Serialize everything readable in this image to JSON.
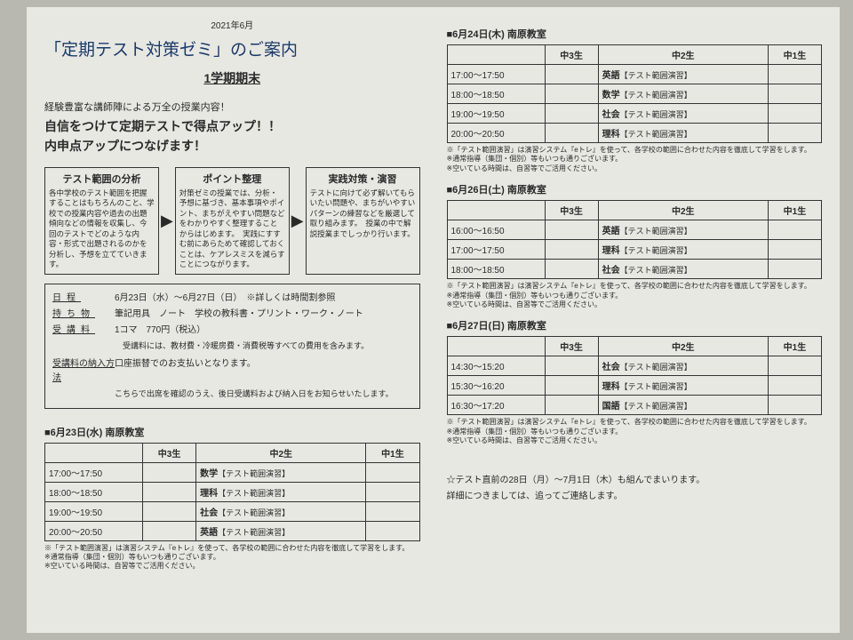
{
  "top_date": "2021年6月",
  "title": "「定期テスト対策ゼミ」のご案内",
  "subtitle": "1学期期末",
  "lead1": "経験豊富な講師陣による万全の授業内容！",
  "lead2": "自信をつけて定期テストで得点アップ！！",
  "lead3": "内申点アップにつなげます！",
  "flow": [
    {
      "title": "テスト範囲の分析",
      "text": "各中学校のテスト範囲を把握することはもちろんのこと、学校での授業内容や過去の出題傾向などの情報を収集し、今回のテストでどのような内容・形式で出題されるのかを分析し、予想を立てていきます。"
    },
    {
      "title": "ポイント整理",
      "text": "対策ゼミの授業では、分析・予想に基づき、基本事項やポイント、まちがえやすい問題などをわかりやすく整理することからはじめます。　実践にすすむ前にあらためて確認しておくことは、ケアレスミスを減らすことにつながります。"
    },
    {
      "title": "実践対策・演習",
      "text": "テストに向けて必ず解いてもらいたい問題や、まちがいやすいパターンの練習などを厳選して取り組みます。　授業の中で解説授業までしっかり行います。"
    }
  ],
  "info": {
    "schedule_label": "日程",
    "schedule": "6月23日（水）～6月27日（日）　※詳しくは時間割参照",
    "items_label": "持ち物",
    "items": "筆記用具　ノート　学校の教科書・プリント・ワーク・ノート",
    "fee_label": "受講料",
    "fee": "1コマ　770円（税込）",
    "fee_note": "　受講料には、教材費・冷暖房費・消費税等すべての費用を含みます。",
    "pay_label": "受講料の納入方法",
    "pay1": "口座振替でのお支払いとなります。",
    "pay2": "こちらで出席を確認のうえ、後日受講料および納入日をお知らせいたします。"
  },
  "sched_headers": [
    "中3生",
    "中2生",
    "中1生"
  ],
  "footnote1": "※「テスト範囲演習」は演習システム『eトレ』を使って、各学校の範囲に合わせた内容を徹底して学習をします。",
  "footnote2": "※通常指導（集団・個別）等もいつも通りございます。",
  "footnote3": "※空いている時間は、自習等でご活用ください。",
  "days": [
    {
      "title": "■6月23日(水) 南原教室",
      "rows": [
        {
          "time": "17:00～17:50",
          "c2": "数学【テスト範囲演習】"
        },
        {
          "time": "18:00～18:50",
          "c2": "理科【テスト範囲演習】"
        },
        {
          "time": "19:00～19:50",
          "c2": "社会【テスト範囲演習】"
        },
        {
          "time": "20:00～20:50",
          "c2": "英語【テスト範囲演習】"
        }
      ]
    },
    {
      "title": "■6月24日(木) 南原教室",
      "rows": [
        {
          "time": "17:00～17:50",
          "c2": "英語【テスト範囲演習】"
        },
        {
          "time": "18:00～18:50",
          "c2": "数学【テスト範囲演習】"
        },
        {
          "time": "19:00～19:50",
          "c2": "社会【テスト範囲演習】"
        },
        {
          "time": "20:00～20:50",
          "c2": "理科【テスト範囲演習】"
        }
      ]
    },
    {
      "title": "■6月26日(土) 南原教室",
      "rows": [
        {
          "time": "16:00～16:50",
          "c2": "英語【テスト範囲演習】"
        },
        {
          "time": "17:00～17:50",
          "c2": "理科【テスト範囲演習】"
        },
        {
          "time": "18:00～18:50",
          "c2": "社会【テスト範囲演習】"
        }
      ]
    },
    {
      "title": "■6月27日(日) 南原教室",
      "rows": [
        {
          "time": "14:30～15:20",
          "c2": "社会【テスト範囲演習】"
        },
        {
          "time": "15:30～16:20",
          "c2": "理科【テスト範囲演習】"
        },
        {
          "time": "16:30～17:20",
          "c2": "国語【テスト範囲演習】"
        }
      ]
    }
  ],
  "closing1": "☆テスト直前の28日（月）～7月1日（木）も組んでまいります。",
  "closing2": "詳細につきましては、追ってご連絡します。"
}
